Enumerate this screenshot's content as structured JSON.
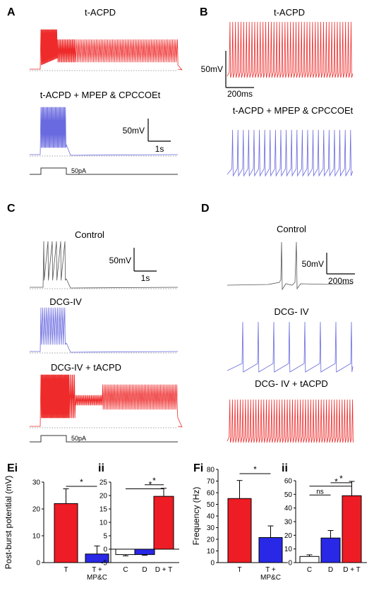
{
  "panels": {
    "A": {
      "label": "A",
      "title_top": "t-ACPD",
      "title_bottom": "t-ACPD + MPEP & CPCCOEt",
      "scale_v": "50mV",
      "scale_h": "1s",
      "stim": "50pA"
    },
    "B": {
      "label": "B",
      "title_top": "t-ACPD",
      "title_bottom": "t-ACPD + MPEP & CPCCOEt",
      "scale_v": "50mV",
      "scale_h": "200ms"
    },
    "C": {
      "label": "C",
      "title_1": "Control",
      "title_2": "DCG-IV",
      "title_3": "DCG-IV + tACPD",
      "scale_v": "50mV",
      "scale_h": "1s",
      "stim": "50pA"
    },
    "D": {
      "label": "D",
      "title_1": "Control",
      "title_2": "DCG- IV",
      "title_3": "DCG- IV + tACPD",
      "scale_v": "50mV",
      "scale_h": "200ms"
    }
  },
  "colors": {
    "red": "#ee1c24",
    "blue": "#2828e6",
    "trace_blue": "#6a6ae0",
    "trace_red": "#ee2a2a",
    "trace_black": "#555555",
    "white": "#ffffff"
  },
  "chart_data": [
    {
      "id": "Ei",
      "panel_label": "Ei",
      "type": "bar",
      "ylabel": "Post-burst potential (mV)",
      "ylim": [
        0,
        30
      ],
      "yticks": [
        "0",
        "10",
        "20",
        "30"
      ],
      "categories": [
        "T",
        "T +"
      ],
      "category_sub": [
        "",
        "MP&C"
      ],
      "values": [
        22,
        3.2
      ],
      "errors": [
        5.5,
        3.0
      ],
      "colors": [
        "red",
        "blue"
      ],
      "significance": [
        {
          "from": 0,
          "to": 1,
          "label": "*"
        }
      ]
    },
    {
      "id": "Eii",
      "panel_label": "ii",
      "type": "bar",
      "ylim": [
        -5,
        25
      ],
      "yticks": [
        "-5",
        "0",
        "5",
        "10",
        "15",
        "20",
        "25"
      ],
      "categories": [
        "C",
        "D",
        "D + T"
      ],
      "values": [
        -2.0,
        -2.0,
        19.7
      ],
      "errors": [
        0.5,
        0.3,
        3.0
      ],
      "colors": [
        "white",
        "blue",
        "red"
      ],
      "significance": [
        {
          "from": 1,
          "to": 2,
          "label": "*"
        },
        {
          "from": 0,
          "to": 2,
          "label": "*"
        }
      ]
    },
    {
      "id": "Fi",
      "panel_label": "Fi",
      "type": "bar",
      "ylabel": "Frequency (Hz)",
      "ylim": [
        0,
        80
      ],
      "yticks": [
        "0",
        "10",
        "20",
        "30",
        "40",
        "50",
        "60",
        "70",
        "80"
      ],
      "categories": [
        "T",
        "T +"
      ],
      "category_sub": [
        "",
        "MP&C"
      ],
      "values": [
        55,
        21.5
      ],
      "errors": [
        15.5,
        10
      ],
      "colors": [
        "red",
        "blue"
      ],
      "significance": [
        {
          "from": 0,
          "to": 1,
          "label": "*"
        }
      ]
    },
    {
      "id": "Fii",
      "panel_label": "ii",
      "type": "bar",
      "ylim": [
        0,
        60
      ],
      "yticks": [
        "0",
        "10",
        "20",
        "30",
        "40",
        "50",
        "60"
      ],
      "categories": [
        "C",
        "D",
        "D + T"
      ],
      "values": [
        4.5,
        18,
        49
      ],
      "errors": [
        1.2,
        5.5,
        10.5
      ],
      "colors": [
        "white",
        "blue",
        "red"
      ],
      "significance": [
        {
          "from": 0,
          "to": 1,
          "label": "ns"
        },
        {
          "from": 1,
          "to": 2,
          "label": "*"
        },
        {
          "from": 0,
          "to": 2,
          "label": "*"
        }
      ]
    }
  ]
}
